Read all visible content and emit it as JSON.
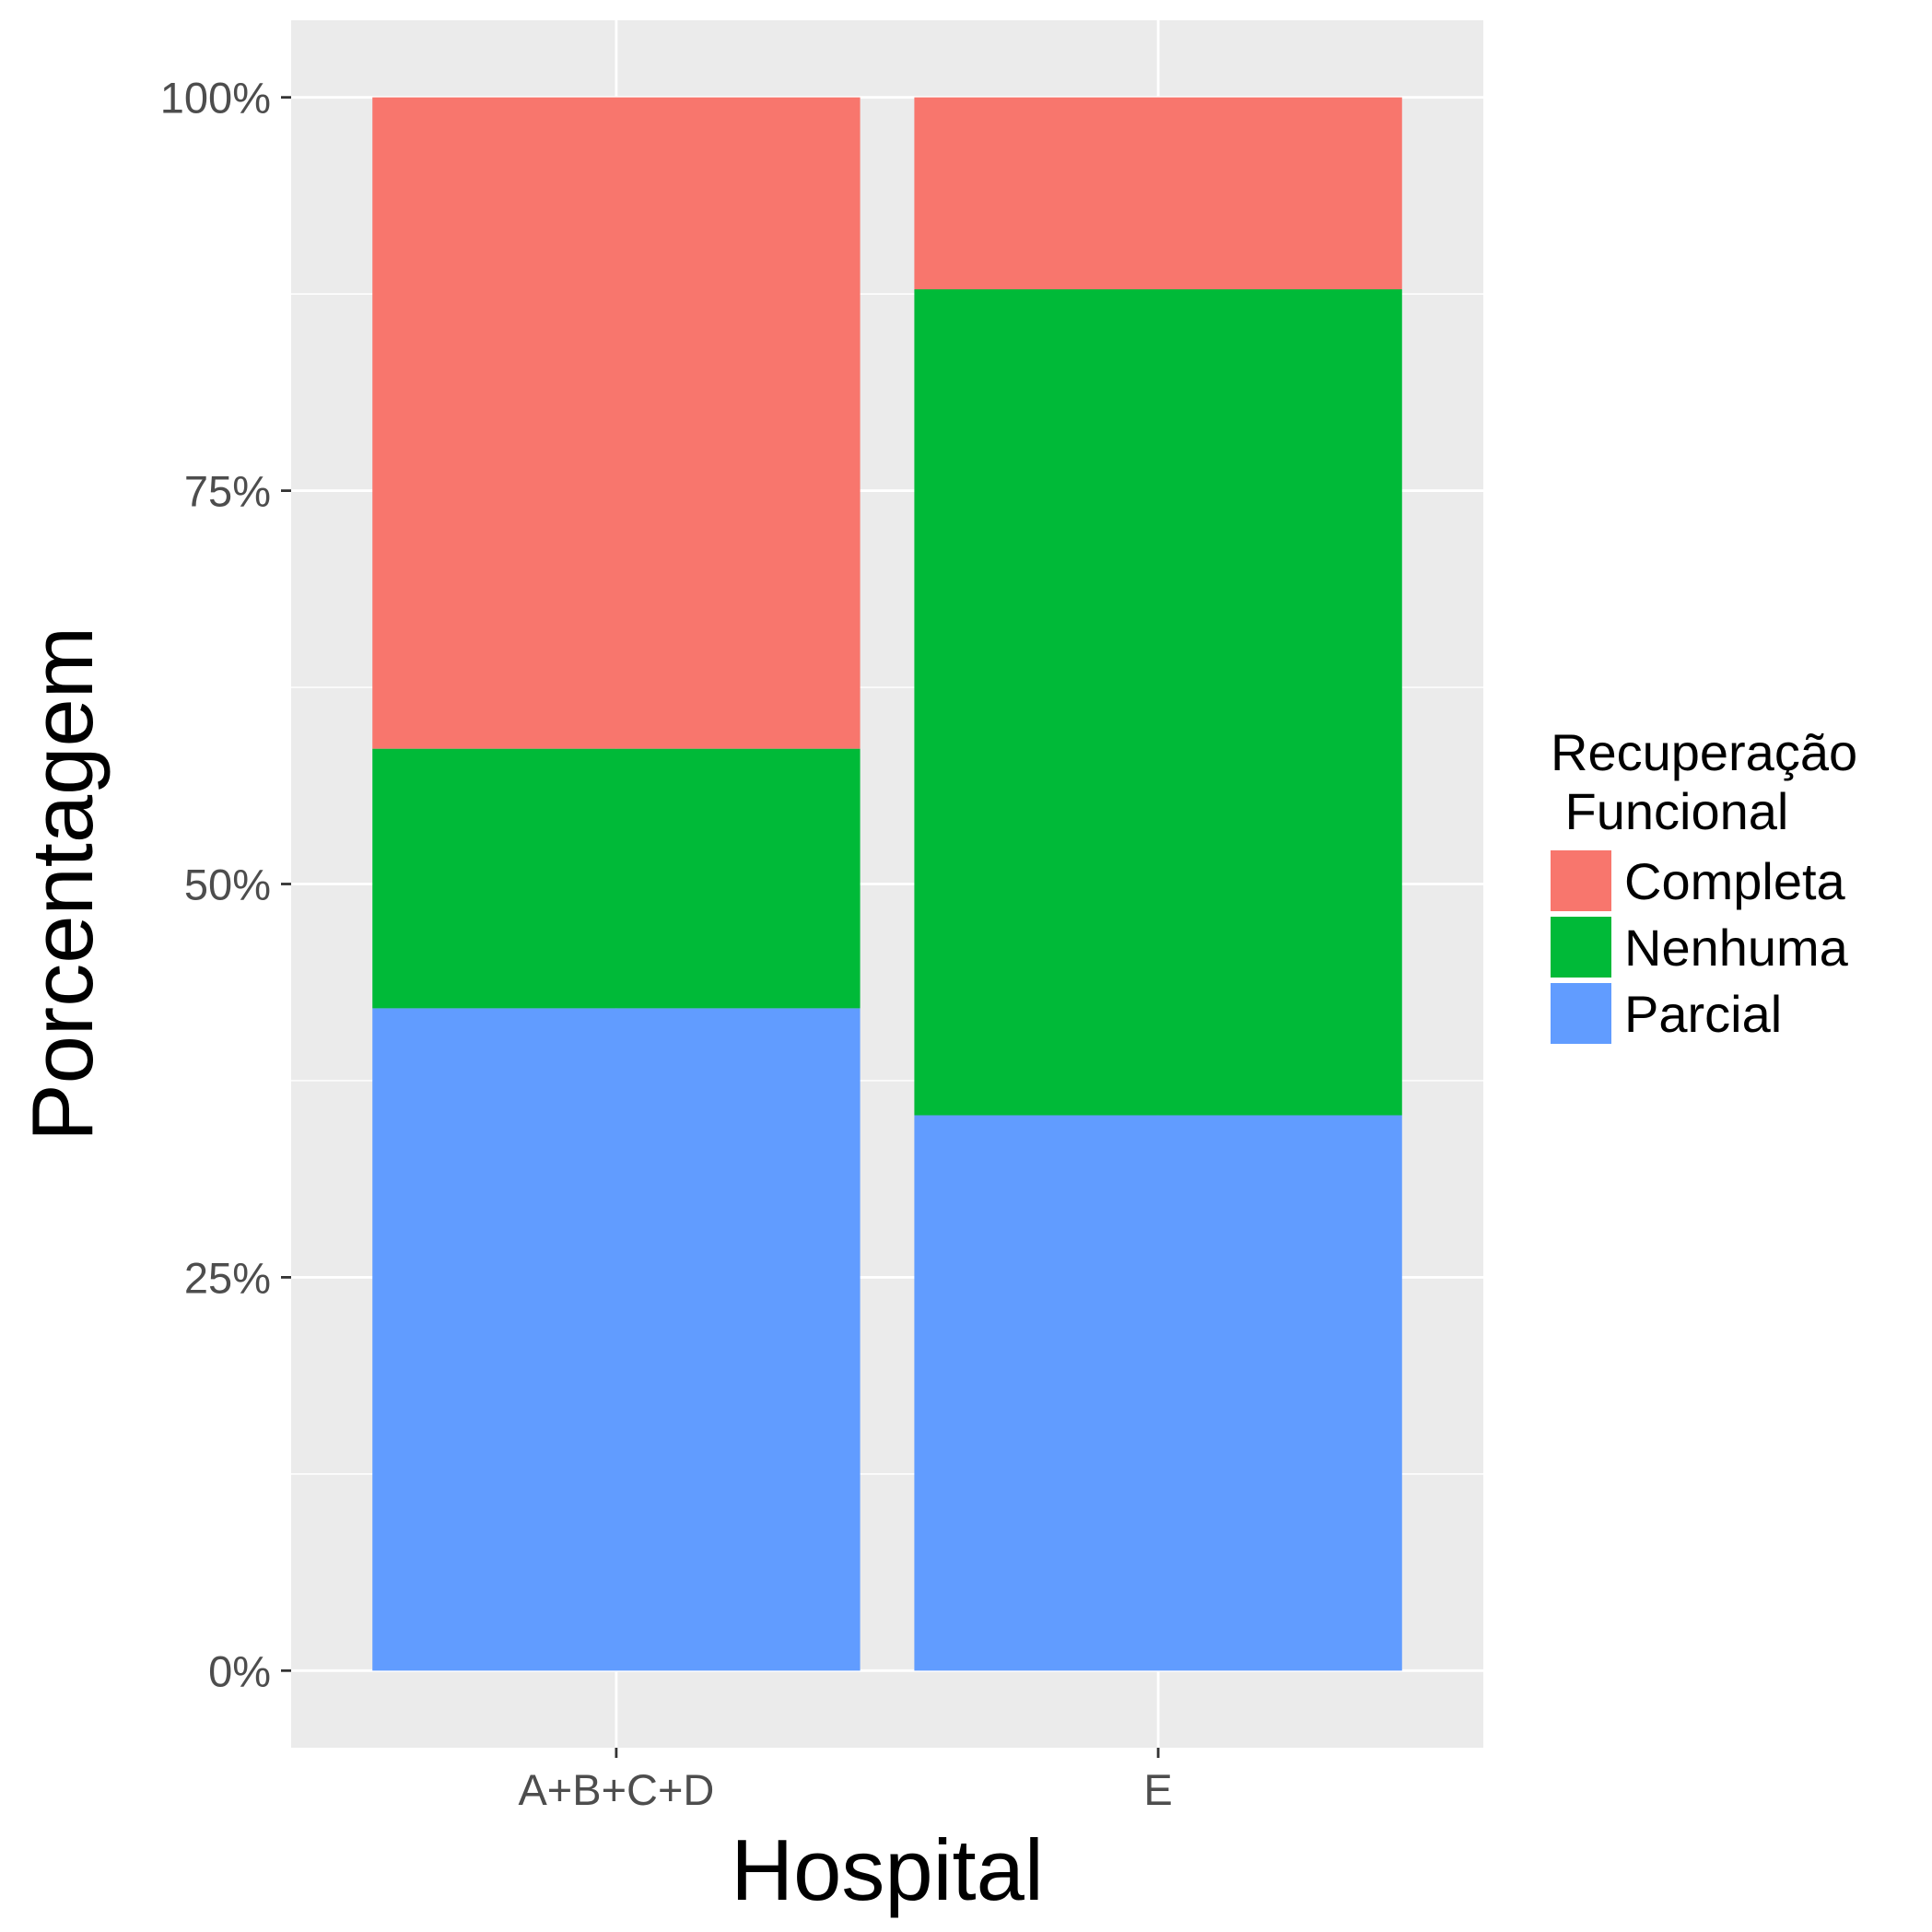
{
  "chart_data": {
    "type": "bar",
    "stacked": true,
    "categories": [
      "A+B+C+D",
      "E"
    ],
    "series": [
      {
        "name": "Parcial",
        "values": [
          42.1,
          35.3
        ]
      },
      {
        "name": "Nenhuma",
        "values": [
          16.5,
          52.5
        ]
      },
      {
        "name": "Completa",
        "values": [
          41.4,
          12.2
        ]
      }
    ],
    "legend_order": [
      "Completa",
      "Nenhuma",
      "Parcial"
    ],
    "xlabel": "Hospital",
    "ylabel": "Porcentagem",
    "legend_title_line1": "Recuperação",
    "legend_title_line2": " Funcional",
    "ylim": [
      -4.9,
      104.9
    ],
    "yticks": [
      0,
      25,
      50,
      75,
      100
    ],
    "ytick_labels": [
      "0%",
      "25%",
      "50%",
      "75%",
      "100%"
    ],
    "minor_yticks": [
      12.5,
      37.5,
      62.5,
      87.5
    ],
    "grid": true,
    "legend_position": "right",
    "colors": {
      "Completa": "#F8766D",
      "Nenhuma": "#00BA38",
      "Parcial": "#619CFF",
      "panel_background": "#EBEBEB",
      "grid_line": "#FFFFFF"
    }
  }
}
